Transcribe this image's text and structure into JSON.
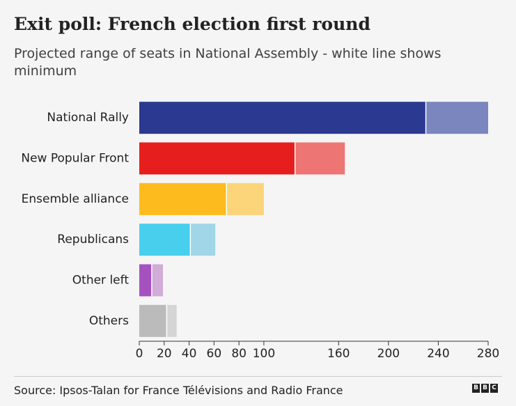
{
  "chart_data": {
    "type": "range-bar",
    "title": "Exit poll: French election first round",
    "subtitle": "Projected range of seats in National Assembly - white line shows minimum",
    "source": "Source: Ipsos-Talan for France Télévisions and Radio France",
    "logo": "BBC",
    "categories": [
      "National Rally",
      "New Popular Front",
      "Ensemble alliance",
      "Republicans",
      "Other left",
      "Others"
    ],
    "min": [
      230,
      125,
      70,
      41,
      10,
      22
    ],
    "max": [
      280,
      165,
      100,
      61,
      19,
      30
    ],
    "colors": [
      "#2b3990",
      "#e61e1e",
      "#fdbb1e",
      "#48cfee",
      "#a552c0",
      "#bbbbbb"
    ],
    "range_colors": [
      "#7a86bd",
      "#ed7573",
      "#fcd57a",
      "#a0d6e8",
      "#d1acd8",
      "#d5d5d5"
    ],
    "xlim": [
      0,
      280
    ],
    "xticks": [
      0,
      20,
      40,
      60,
      80,
      100,
      160,
      200,
      240,
      280
    ]
  }
}
